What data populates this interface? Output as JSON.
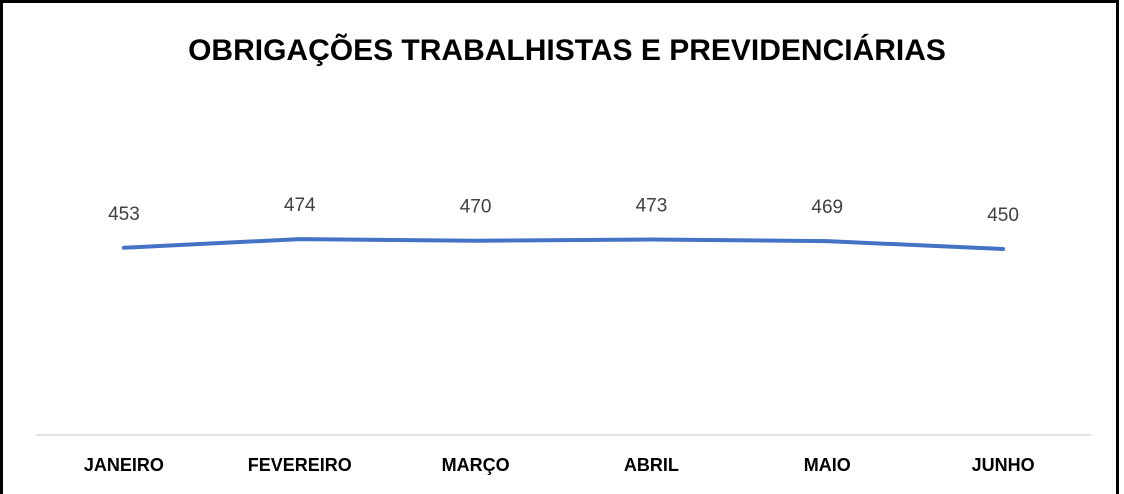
{
  "chart_data": {
    "type": "line",
    "title": "OBRIGAÇÕES TRABALHISTAS E PREVIDENCIÁRIAS",
    "categories": [
      "JANEIRO",
      "FEVEREIRO",
      "MARÇO",
      "ABRIL",
      "MAIO",
      "JUNHO"
    ],
    "series": [
      {
        "name": "OBRIGAÇÕES TRABALHISTAS E PREVIDENCIÁRIAS",
        "color": "#4472c4",
        "values": [
          453,
          474,
          470,
          473,
          469,
          450
        ]
      }
    ],
    "ylim": [
      0,
      600
    ]
  }
}
